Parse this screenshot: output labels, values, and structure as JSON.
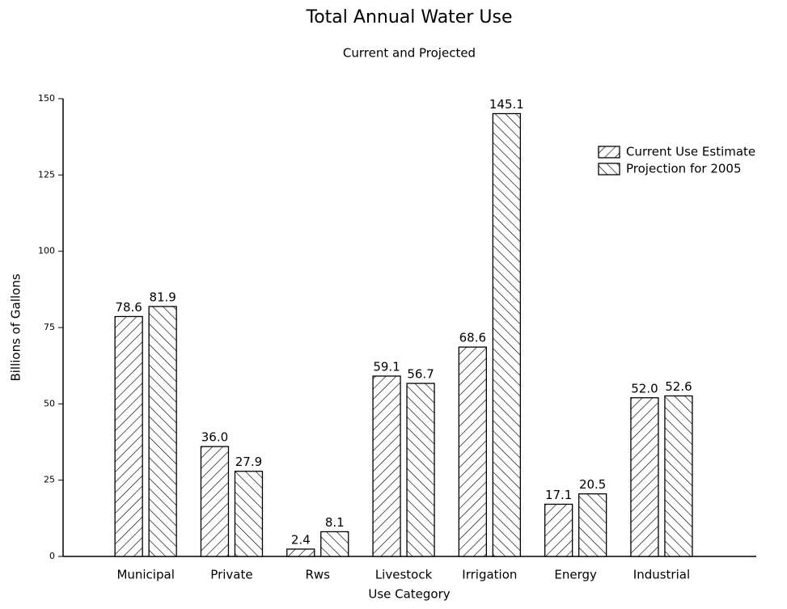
{
  "chart_data": {
    "type": "bar",
    "title": "Total Annual Water Use",
    "subtitle": "Current and Projected",
    "x_label": "Use Category",
    "y_label": "Billions of Gallons",
    "categories": [
      "Municipal",
      "Private",
      "Rws",
      "Livestock",
      "Irrigation",
      "Energy",
      "Industrial"
    ],
    "series": [
      {
        "name": "Current Use Estimate",
        "color": "#000000",
        "hatch": "forward",
        "values": [
          78.6,
          36.0,
          2.4,
          59.1,
          68.6,
          17.1,
          52.0
        ],
        "value_labels": [
          "78.6",
          "36.0",
          "2.4",
          "59.1",
          "68.6",
          "17.1",
          "52.0"
        ]
      },
      {
        "name": "Projection for 2005",
        "color": "#000000",
        "hatch": "backward",
        "values": [
          81.9,
          27.9,
          8.1,
          56.7,
          145.1,
          20.5,
          52.6
        ],
        "value_labels": [
          "81.9",
          "27.9",
          "8.1",
          "56.7",
          "145.1",
          "20.5",
          "52.6"
        ]
      }
    ],
    "ylim": [
      0,
      150
    ],
    "yticks": [
      0,
      25,
      50,
      75,
      100,
      125,
      150
    ],
    "grid": false,
    "legend": "upper right"
  }
}
